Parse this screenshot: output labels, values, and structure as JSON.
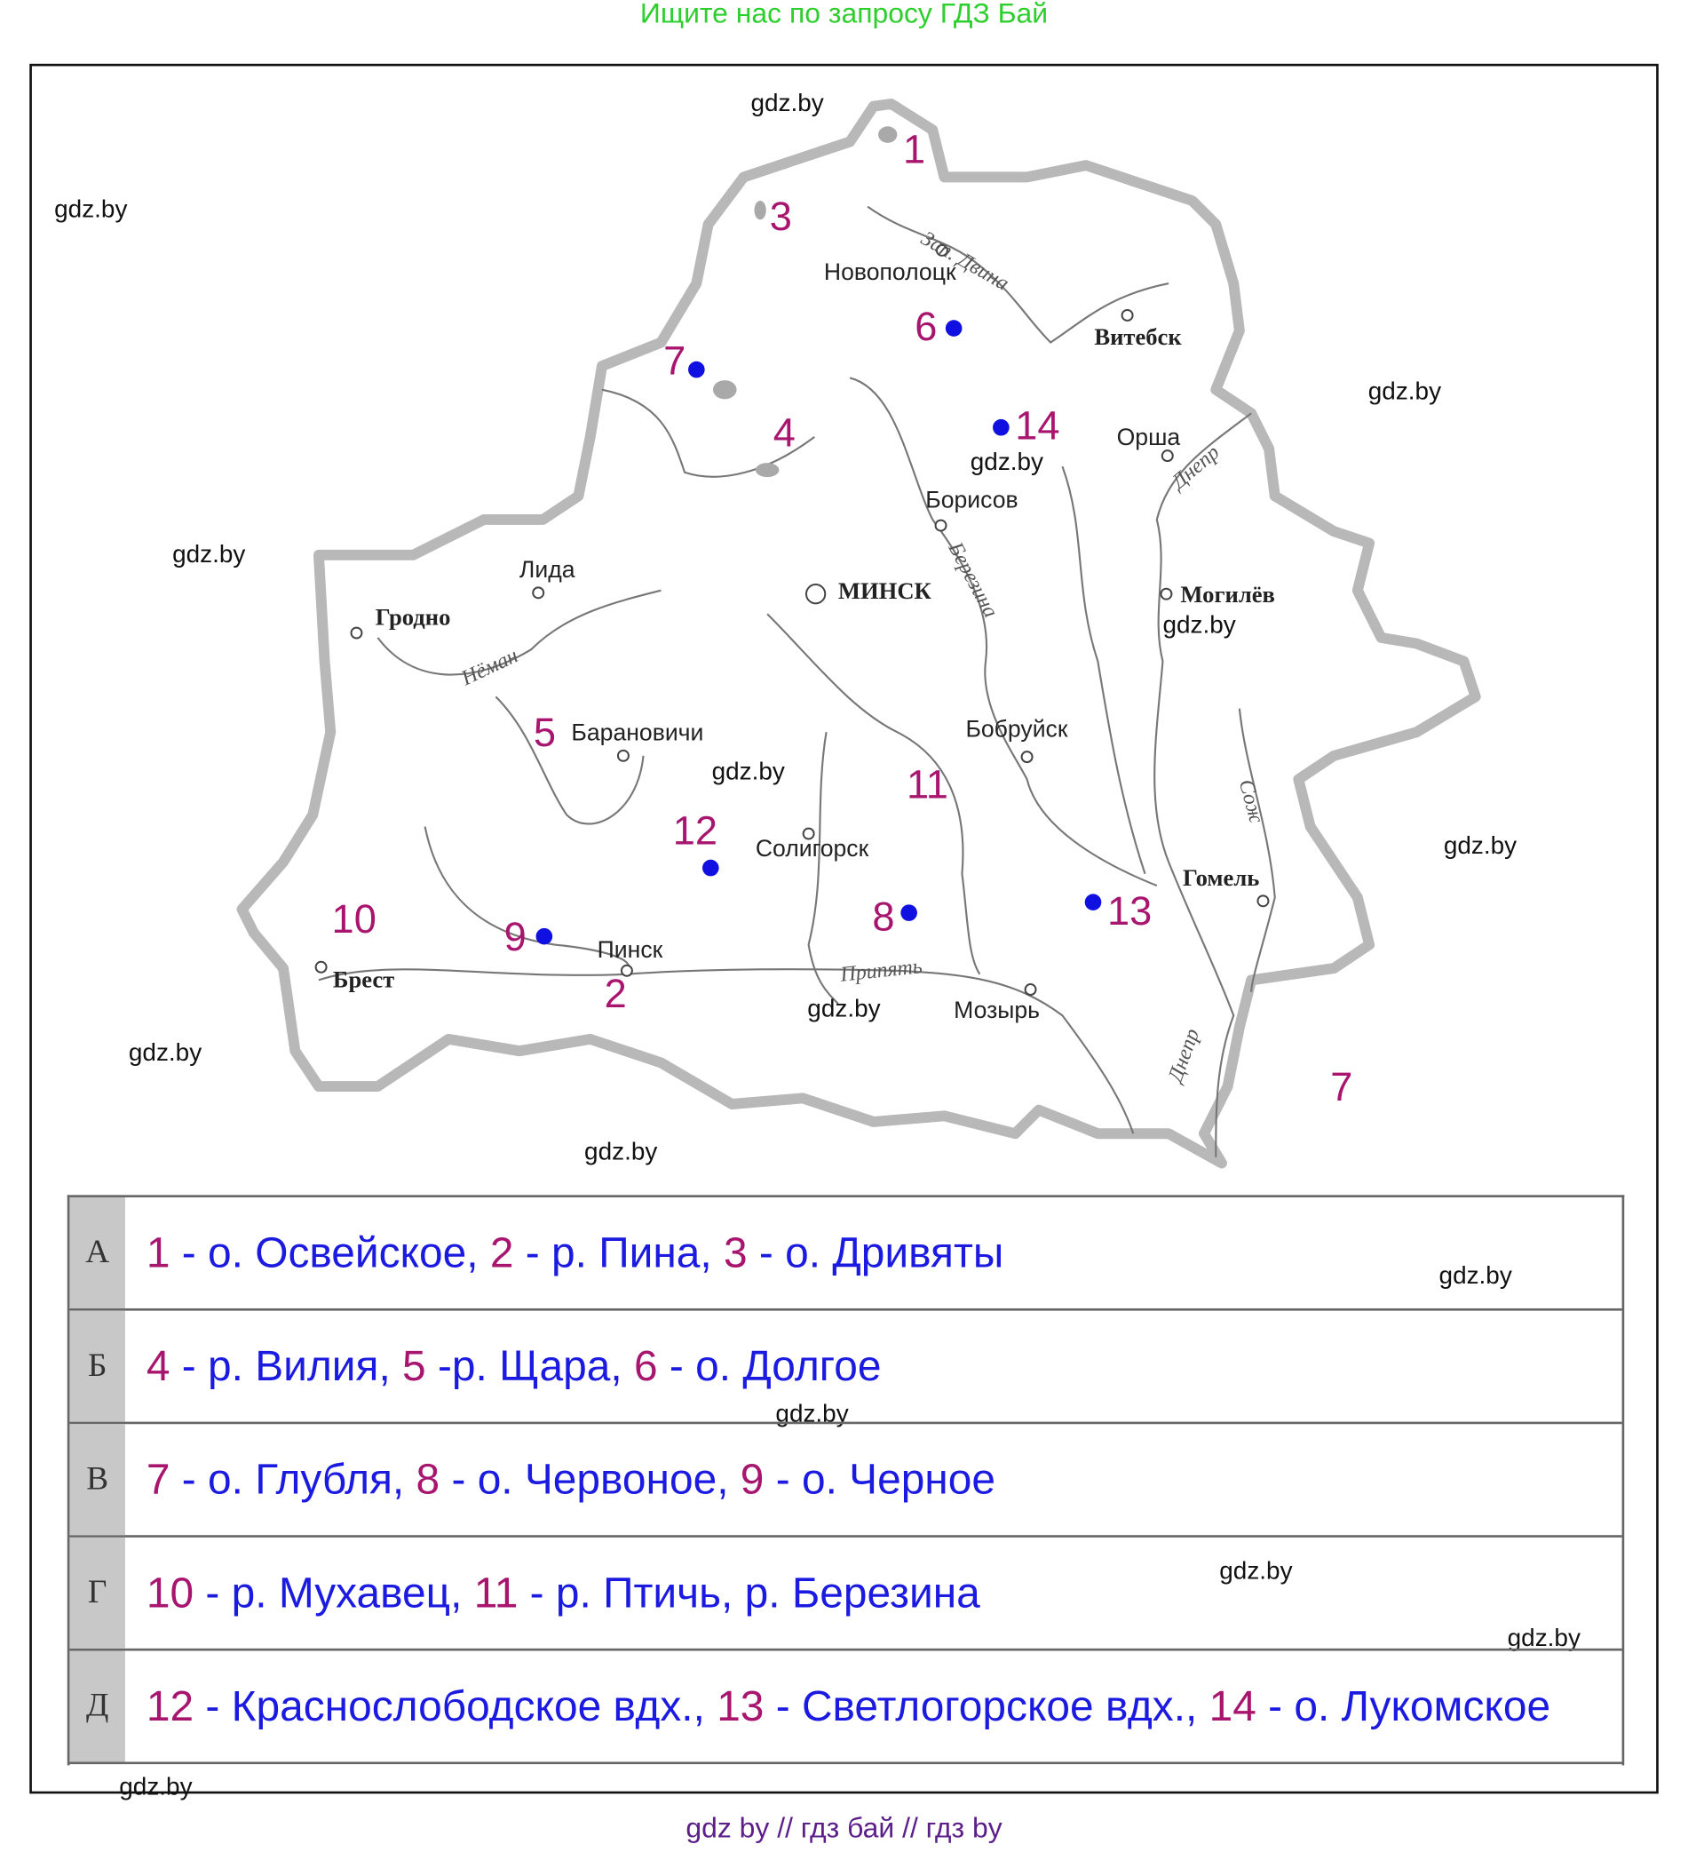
{
  "banner": "Ищите нас по запросу ГДЗ Бай",
  "footer": "gdz by  //  гдз бай  //  гдз by",
  "watermark": "gdz.by",
  "colors": {
    "number": "#a8156f",
    "answer_text": "#1a1ae0",
    "lake_dot": "#1010e0",
    "banner": "#2ccf2c",
    "footer": "#5c1f8a",
    "border": "#b8b8b8"
  },
  "map": {
    "numbers": [
      "1",
      "2",
      "3",
      "4",
      "5",
      "6",
      "7",
      "8",
      "9",
      "10",
      "11",
      "12",
      "13",
      "14",
      "7"
    ],
    "cities": [
      "Новополоцк",
      "Витебск",
      "Орша",
      "Борисов",
      "Лида",
      "МИНСК",
      "Могилёв",
      "Гродно",
      "Барановичи",
      "Бобруйск",
      "Солигорск",
      "Гомель",
      "Пинск",
      "Брест",
      "Мозырь"
    ],
    "rivers": [
      "Зап. Двина",
      "Днепр",
      "Березина",
      "Нёман",
      "Сож",
      "Припять",
      "Днепр"
    ]
  },
  "table": {
    "rows": [
      {
        "letter": "А",
        "parts": [
          {
            "n": "1",
            "t": " - о. Освейское, "
          },
          {
            "n": "2",
            "t": " - р. Пина, "
          },
          {
            "n": "3",
            "t": " - о. Дривяты"
          }
        ]
      },
      {
        "letter": "Б",
        "parts": [
          {
            "n": "4",
            "t": " - р. Вилия, "
          },
          {
            "n": "5",
            "t": " -р. Щара, "
          },
          {
            "n": "6",
            "t": " - о. Долгое"
          }
        ]
      },
      {
        "letter": "В",
        "parts": [
          {
            "n": "7",
            "t": " - о. Глубля, "
          },
          {
            "n": "8",
            "t": " - о. Червоное, "
          },
          {
            "n": "9",
            "t": " - о. Черное"
          }
        ]
      },
      {
        "letter": "Г",
        "parts": [
          {
            "n": "10",
            "t": " - р. Мухавец, "
          },
          {
            "n": "11",
            "t": " - р. Птичь, р. Березина"
          }
        ]
      },
      {
        "letter": "Д",
        "parts": [
          {
            "n": "12",
            "t": " - Краснослободское вдх., "
          },
          {
            "n": "13",
            "t": " - Светлогорское вдх., "
          },
          {
            "n": "14",
            "t": " - о. Лукомское"
          }
        ]
      }
    ]
  }
}
